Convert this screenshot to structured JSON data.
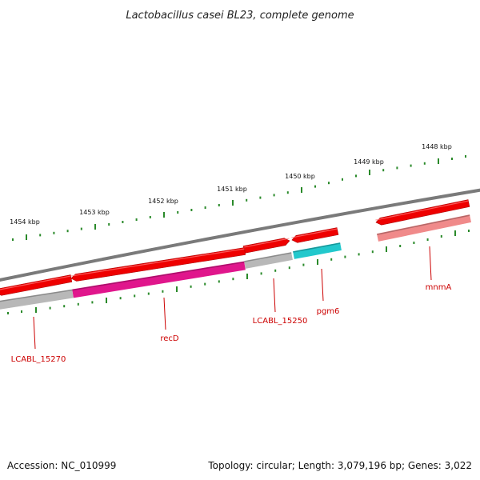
{
  "title": "Lactobacillus casei BL23, complete genome",
  "footer": {
    "accession": "Accession: NC_010999",
    "topology": "Topology: circular; Length: 3,079,196 bp; Genes: 3,022"
  },
  "scale": {
    "labels": [
      "1448 kbp",
      "1449 kbp",
      "1450 kbp",
      "1451 kbp",
      "1452 kbp",
      "1453 kbp",
      "1454 kbp"
    ],
    "tick_color": "#2a8a2a"
  },
  "genes": [
    {
      "name": "mnmA",
      "strand": "reverse",
      "color": "#ee0000"
    },
    {
      "name": "pgm6",
      "strand": "reverse",
      "color": "#ee0000"
    },
    {
      "name": "LCABL_15250",
      "strand": "forward",
      "color": "#ee0000"
    },
    {
      "name": "recD",
      "strand": "reverse",
      "color": "#ee0000"
    },
    {
      "name": "LCABL_15270",
      "strand": "reverse",
      "color": "#ee0000"
    }
  ],
  "features": [
    {
      "gene": "mnmA",
      "color": "#f08a8a"
    },
    {
      "gene": "pgm6",
      "color": "#22c8cc"
    },
    {
      "gene": "LCABL_15250",
      "color": "#b8b8b8"
    },
    {
      "gene": "recD",
      "color": "#e0168c"
    },
    {
      "gene": "LCABL_15270",
      "color": "#b8b8b8"
    }
  ],
  "colors": {
    "backbone": "#7a7a7a",
    "label": "#cc0000"
  }
}
